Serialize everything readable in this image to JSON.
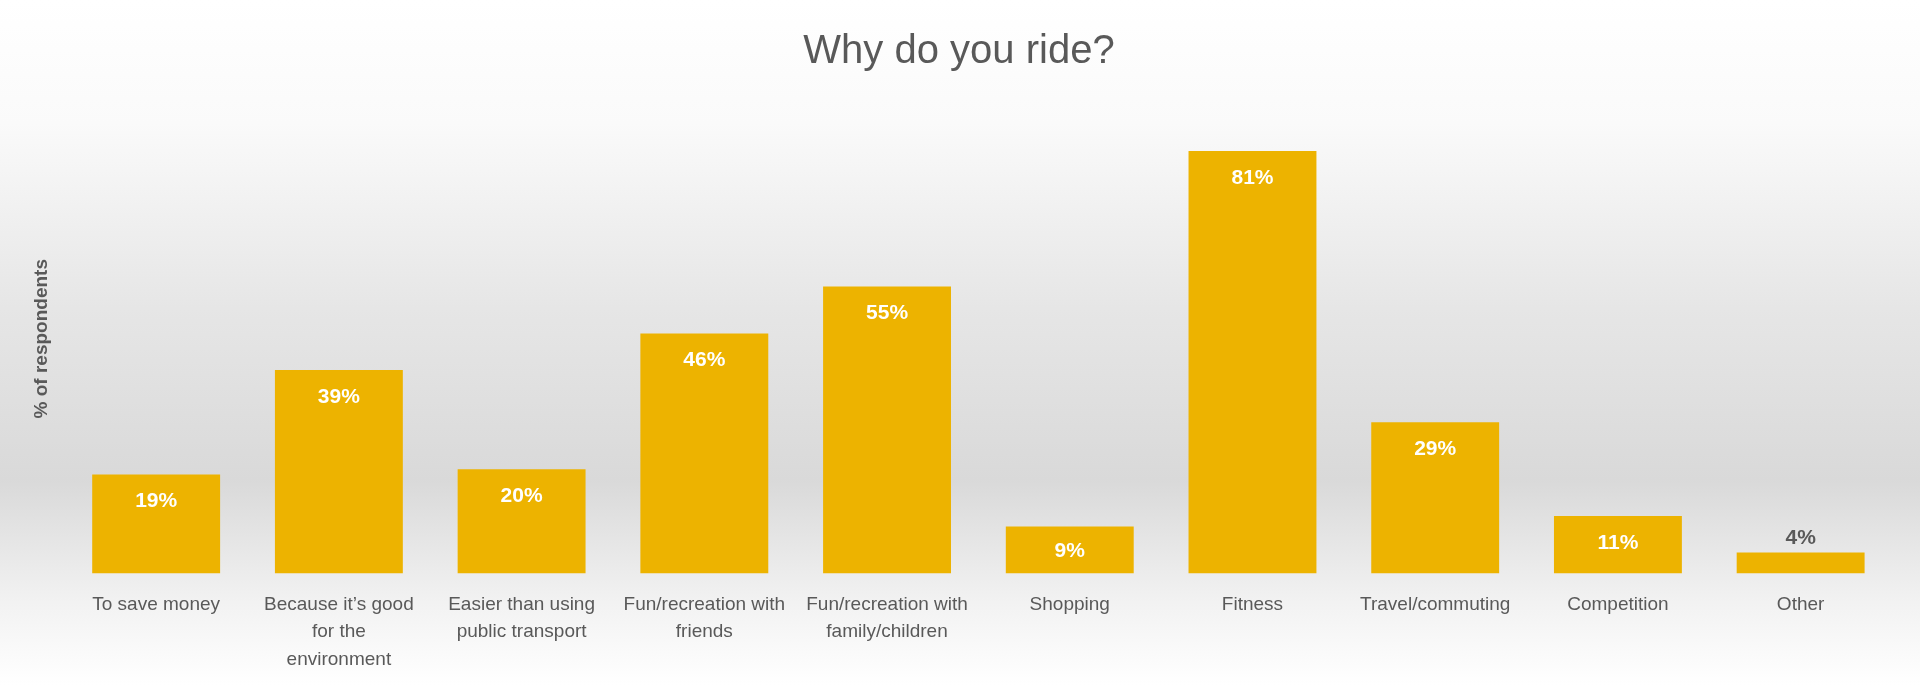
{
  "chart_data": {
    "type": "bar",
    "title": "Why do you ride?",
    "ylabel": "% of respondents",
    "categories": [
      "To save money",
      "Because it’s good for the environment",
      "Easier than using public transport",
      "Fun/recreation with friends",
      "Fun/recreation with family/children",
      "Shopping",
      "Fitness",
      "Travel/commuting",
      "Competition",
      "Other"
    ],
    "values": [
      19,
      39,
      20,
      46,
      55,
      9,
      81,
      29,
      11,
      4
    ],
    "value_labels": [
      "19%",
      "39%",
      "20%",
      "46%",
      "55%",
      "9%",
      "81%",
      "29%",
      "11%",
      "4%"
    ],
    "color": "#edb300",
    "grid": false,
    "legend": false
  }
}
